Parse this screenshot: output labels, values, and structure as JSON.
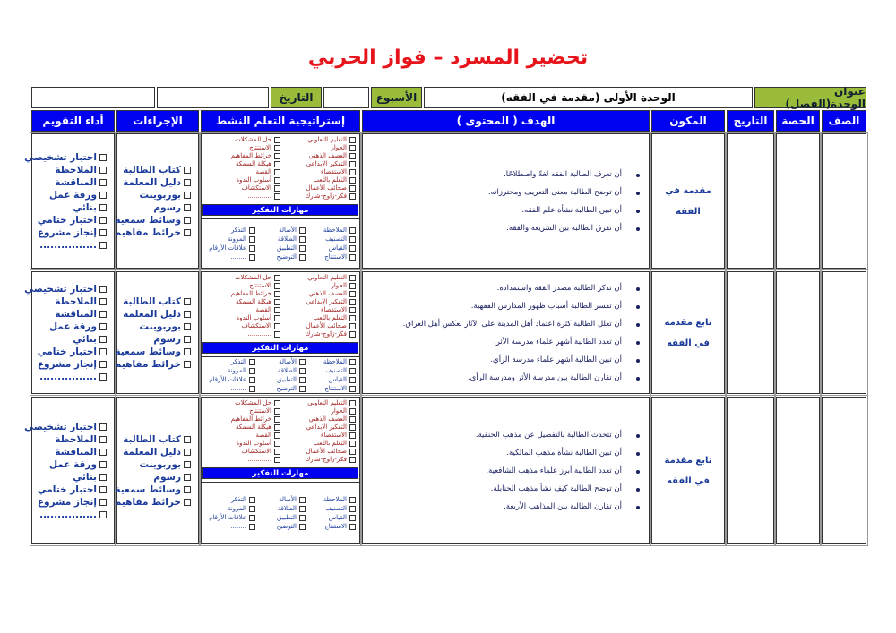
{
  "title": "تحضير المسرد – فواز الحربي",
  "top": {
    "unit_label": "عنوان الوحدة(الفصل)",
    "unit_value": "الوحدة الأولى (مقدمة في الفقه)",
    "week_label": "الأسبوع",
    "week_value": "",
    "date_label": "التاريخ",
    "date_value": "",
    "extra": ""
  },
  "headers": {
    "class": "الصف",
    "period": "الحصة",
    "date": "التاريخ",
    "component": "المكون",
    "goal": "الهدف ( المحتوى )",
    "strategy": "إستراتيجية التعلم النشط",
    "procedures": "الإجراءات",
    "evaluation": "أداء التقويم"
  },
  "colors": {
    "title": "#e8141b",
    "header_blue": "#0000f0",
    "label_green": "#9bbb3b"
  },
  "strategies": {
    "col1": [
      "التعليم التعاوني",
      "الحوار",
      "العصف الذهني",
      "التفكير الابداعي",
      "الاستقصاء",
      "التعلم باللعب",
      "صحائف الأعمال",
      "فكر-زاوج-شارك"
    ],
    "col2": [
      "حل المشكلات",
      "الاستنتاج",
      "خرائط المفاهيم",
      "هيكلة السمكة",
      "القصة",
      "أسلوب الندوة",
      "الاستكشاف",
      "............"
    ]
  },
  "thinking_skills": {
    "label": "مهارات التفكير",
    "col1": [
      "الملاحظة",
      "التصنيف",
      "القياس",
      "الاستنتاج"
    ],
    "col2": [
      "الأصالة",
      "الطلاقة",
      "التطبيق",
      "التوضيح"
    ],
    "col3": [
      "التذكر",
      "المرونة",
      "علاقات الأرقام",
      "........"
    ]
  },
  "procedures": [
    "كتاب الطالبة",
    "دليل المعلمة",
    "بوربوينت",
    "رسوم",
    "وسائط سمعية",
    "خرائط مفاهيم"
  ],
  "evaluation": [
    "اختبار تشخيصي",
    "الملاحظة",
    "المناقشة",
    "ورقة عمل",
    "بنائي",
    "اختبار ختامي",
    "إنجاز مشروع",
    "................"
  ],
  "rows": [
    {
      "component": "مقدمة في الفقه",
      "goals": [
        "أن تعرف الطالبة الفقه لغةً واصطلاحًا.",
        "أن توضح الطالبة معنى التعريف ومحترزاته.",
        "أن تبين الطالبة نشأة علم الفقه.",
        "أن تفرق الطالبة بين الشريعة والفقه."
      ]
    },
    {
      "component": "تابع مقدمة في الفقه",
      "goals": [
        "أن تذكر الطالبة مصدر الفقه واستمداده.",
        "أن تفسر الطالبة أسباب ظهور المدارس الفقهية.",
        "أن تعلل الطالبة كثرة اعتماد أهل المدينة على الآثار بعكس أهل العراق.",
        "أن تعدد الطالبة أشهر علماء مدرسة الأثر.",
        "أن تبين الطالبة أشهر علماء مدرسة الرأي.",
        "أن تقارن الطالبة بين مدرسة الأثر ومدرسة الرأي."
      ]
    },
    {
      "component": "تابع مقدمة في الفقه",
      "goals": [
        "أن تتحدث الطالبة بالتفصيل عن مذهب الحنفية.",
        "أن تبين الطالبة نشأة مذهب المالكية.",
        "أن تعدد الطالبة أبرز علماء مذهب الشافعية.",
        "أن توضح الطالبة كيف نشأ مذهب الحنابلة.",
        "أن تقارن الطالبة بين المذاهب الأربعة."
      ]
    }
  ]
}
